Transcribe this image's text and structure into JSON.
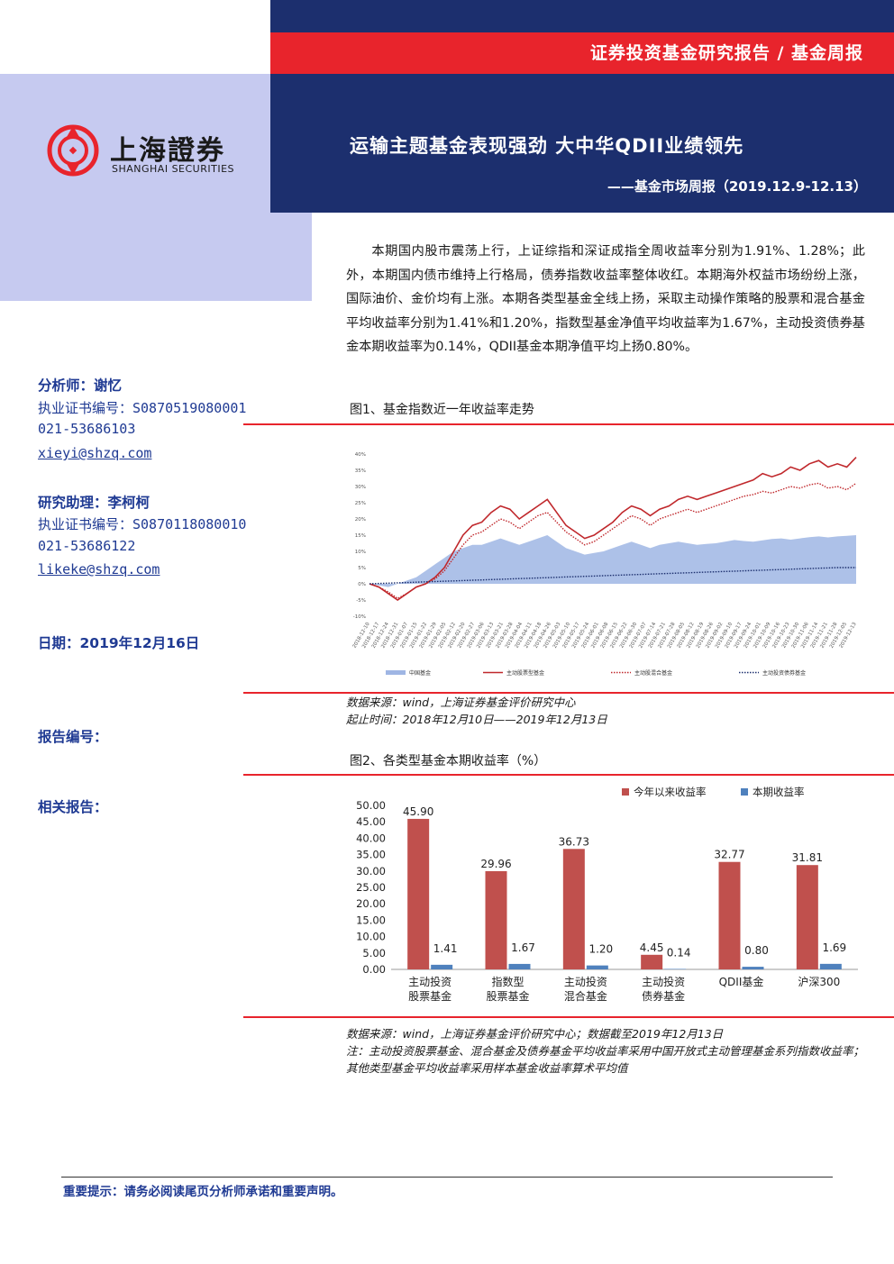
{
  "header": {
    "series": "证券投资基金研究报告 / 基金周报",
    "title": "运输主题基金表现强劲 大中华QDII业绩领先",
    "subtitle": "——基金市场周报（2019.12.9-12.13）",
    "logo_cn": "上海證券",
    "logo_en": "SHANGHAI SECURITIES",
    "colors": {
      "navy": "#1c2f6e",
      "red": "#e8242c",
      "lavender": "#c6caf0",
      "side_text": "#1f3a93"
    }
  },
  "summary": "本期国内股市震荡上行，上证综指和深证成指全周收益率分别为1.91%、1.28%；此外，本期国内债市维持上行格局，债券指数收益率整体收红。本期海外权益市场纷纷上涨，国际油价、金价均有上涨。本期各类型基金全线上扬，采取主动操作策略的股票和混合基金平均收益率分别为1.41%和1.20%，指数型基金净值平均收益率为1.67%，主动投资债券基金本期收益率为0.14%，QDII基金本期净值平均上扬0.80%。",
  "sidebar": {
    "analyst": "分析师：谢忆",
    "analyst_cert": "执业证书编号：S0870519080001",
    "analyst_phone": "021-53686103",
    "analyst_email": "xieyi@shzq.com",
    "assistant": "研究助理：李柯柯",
    "assistant_cert": "执业证书编号：S0870118080010",
    "assistant_phone": "021-53686122",
    "assistant_email": "likeke@shzq.com",
    "date": "日期：2019年12月16日",
    "report_no": "报告编号：",
    "related": "相关报告："
  },
  "figure1": {
    "caption": "图1、基金指数近一年收益率走势",
    "source": "数据来源：wind，上海证券基金评价研究中心",
    "period": "起止时间：2018年12月10日——2019年12月13日"
  },
  "figure2": {
    "caption": "图2、各类型基金本期收益率（%）",
    "source": "数据来源：wind，上海证券基金评价研究中心；数据截至2019年12月13日",
    "note": "注：主动投资股票基金、混合基金及债券基金平均收益率采用中国开放式主动管理基金系列指数收益率；其他类型基金平均收益率采用样本基金收益率算术平均值"
  },
  "chart_data": [
    {
      "type": "line",
      "x_start": "2018-12-10",
      "x_end": "2019-12-13",
      "ylim": [
        -10,
        40
      ],
      "yticks": [
        "-10%",
        "-5%",
        "0%",
        "5%",
        "10%",
        "15%",
        "20%",
        "25%",
        "30%",
        "35%",
        "40%"
      ],
      "series": [
        {
          "name": "中国基金",
          "style": "area",
          "color": "#9fb6e4",
          "values": [
            0,
            -0.5,
            -1,
            0,
            1,
            2,
            4,
            6,
            8,
            10,
            11,
            12,
            12,
            13,
            14,
            13,
            12,
            13,
            14,
            15,
            13,
            11,
            10,
            9,
            9.5,
            10,
            11,
            12,
            13,
            12,
            11,
            12,
            12.5,
            13,
            12.5,
            12,
            12.3,
            12.5,
            13,
            13.5,
            13.2,
            13,
            13.4,
            13.8,
            14,
            13.6,
            14,
            14.4,
            14.6,
            14.3,
            14.6,
            14.8,
            15
          ]
        },
        {
          "name": "主动股票型基金",
          "style": "solid",
          "color": "#c0282c",
          "values": [
            0,
            -1,
            -3,
            -5,
            -3,
            -1,
            0,
            2,
            5,
            10,
            15,
            18,
            19,
            22,
            24,
            23,
            20,
            22,
            24,
            26,
            22,
            18,
            16,
            14,
            15,
            17,
            19,
            22,
            24,
            23,
            21,
            23,
            24,
            26,
            27,
            26,
            27,
            28,
            29,
            30,
            31,
            32,
            34,
            33,
            34,
            36,
            35,
            37,
            38,
            36,
            37,
            36,
            39
          ]
        },
        {
          "name": "主动股混合基金",
          "style": "dotted",
          "color": "#c0282c",
          "values": [
            0,
            -1,
            -2.5,
            -4.5,
            -3,
            -1,
            0,
            1.5,
            4,
            8,
            12,
            15,
            16,
            18,
            20,
            19,
            17,
            19,
            21,
            22,
            19,
            16,
            14,
            12,
            13,
            15,
            17,
            19,
            21,
            20,
            18,
            20,
            21,
            22,
            23,
            22,
            23,
            24,
            25,
            26,
            27,
            27.5,
            28.5,
            28,
            29,
            30,
            29.5,
            30.5,
            31,
            29.5,
            30,
            29,
            31
          ]
        },
        {
          "name": "主动投资债券基金",
          "style": "dotted",
          "color": "#1c2f6e",
          "values": [
            0,
            0.1,
            0.2,
            0.3,
            0.4,
            0.5,
            0.6,
            0.7,
            0.8,
            0.9,
            1,
            1.1,
            1.2,
            1.3,
            1.4,
            1.5,
            1.6,
            1.7,
            1.8,
            1.9,
            2,
            2.1,
            2.2,
            2.3,
            2.4,
            2.5,
            2.6,
            2.7,
            2.8,
            2.9,
            3,
            3.1,
            3.2,
            3.3,
            3.4,
            3.5,
            3.6,
            3.7,
            3.8,
            3.9,
            4,
            4.1,
            4.2,
            4.3,
            4.4,
            4.5,
            4.6,
            4.7,
            4.8,
            4.9,
            5,
            5,
            5
          ]
        }
      ]
    },
    {
      "type": "bar",
      "categories": [
        [
          "主动投资",
          "股票基金"
        ],
        [
          "指数型",
          "股票基金"
        ],
        [
          "主动投资",
          "混合基金"
        ],
        [
          "主动投资",
          "债券基金"
        ],
        [
          "QDII基金"
        ],
        [
          "沪深300"
        ]
      ],
      "series": [
        {
          "name": "今年以来收益率",
          "color": "#c0504d",
          "values": [
            45.9,
            29.96,
            36.73,
            4.45,
            32.77,
            31.81
          ],
          "labels": [
            "45.90",
            "29.96",
            "36.73",
            "4.45",
            "32.77",
            "31.81"
          ]
        },
        {
          "name": "本期收益率",
          "color": "#4f81bd",
          "values": [
            1.41,
            1.67,
            1.2,
            0.14,
            0.8,
            1.69
          ],
          "labels": [
            "1.41",
            "1.67",
            "1.20",
            "0.14",
            "0.80",
            "1.69"
          ]
        }
      ],
      "ylim": [
        0,
        50
      ],
      "yticks": [
        "0.00",
        "5.00",
        "10.00",
        "15.00",
        "20.00",
        "25.00",
        "30.00",
        "35.00",
        "40.00",
        "45.00",
        "50.00"
      ],
      "legend": "top-right"
    }
  ],
  "footer": "重要提示：请务必阅读尾页分析师承诺和重要声明。"
}
